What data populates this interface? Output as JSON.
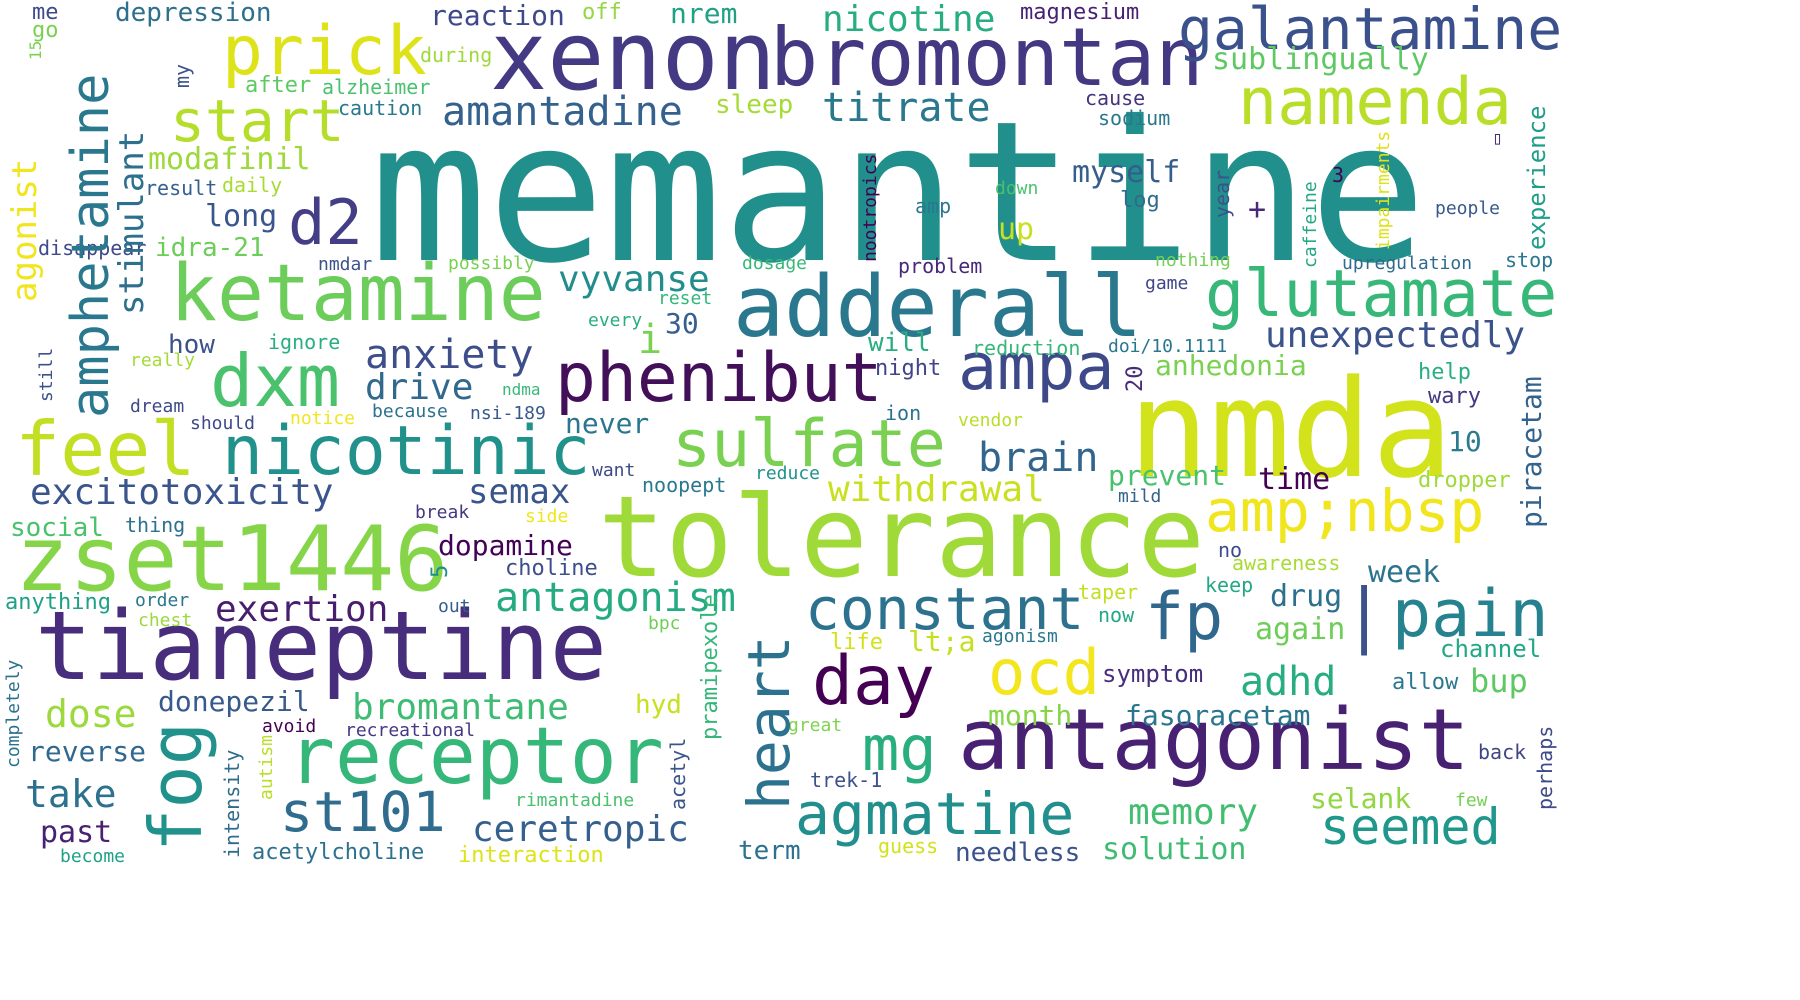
{
  "words": [
    {
      "text": "memantine",
      "color": "#21908c"
    },
    {
      "text": "nmda",
      "color": "#d2e21b"
    },
    {
      "text": "tolerance",
      "color": "#a0da39"
    },
    {
      "text": "xenon",
      "color": "#443983"
    },
    {
      "text": "bromontan",
      "color": "#453882"
    },
    {
      "text": "galantamine",
      "color": "#3b518b"
    },
    {
      "text": "tianeptine",
      "color": "#472d7b"
    },
    {
      "text": "zset1446",
      "color": "#86d549"
    },
    {
      "text": "adderall",
      "color": "#2a788e"
    },
    {
      "text": "antagonist",
      "color": "#482173"
    },
    {
      "text": "ketamine",
      "color": "#6ccd5a"
    },
    {
      "text": "receptor",
      "color": "#35b779"
    },
    {
      "text": "prick",
      "color": "#dde318"
    },
    {
      "text": "phenibut",
      "color": "#440f59"
    },
    {
      "text": "ampa",
      "color": "#3e4989"
    },
    {
      "text": "namenda",
      "color": "#b8de29"
    },
    {
      "text": "glutamate",
      "color": "#37b878"
    },
    {
      "text": "amp;nbsp",
      "color": "#f1e51d"
    },
    {
      "text": "dxm",
      "color": "#4ac16d"
    },
    {
      "text": "feel",
      "color": "#c2df23"
    },
    {
      "text": "nicotinic",
      "color": "#21918c"
    },
    {
      "text": "sulfate",
      "color": "#7ad151"
    },
    {
      "text": "constant",
      "color": "#2c728e"
    },
    {
      "text": "day",
      "color": "#440154"
    },
    {
      "text": "ocd",
      "color": "#f4e61e"
    },
    {
      "text": "pain",
      "color": "#26828e"
    },
    {
      "text": "fp",
      "color": "#30678d"
    },
    {
      "text": "start",
      "color": "#b5de2b"
    },
    {
      "text": "d2",
      "color": "#433e85"
    },
    {
      "text": "amantadine",
      "color": "#34618d"
    },
    {
      "text": "nicotine",
      "color": "#26ad81"
    },
    {
      "text": "titrate",
      "color": "#2a788e"
    },
    {
      "text": "modafinil",
      "color": "#9dd93b"
    },
    {
      "text": "mg",
      "color": "#29af7f"
    },
    {
      "text": "agmatine",
      "color": "#218f8d"
    },
    {
      "text": "st101",
      "color": "#2f6c8e"
    },
    {
      "text": "seemed",
      "color": "#1f988b"
    },
    {
      "text": "ceretropic",
      "color": "#355f8d"
    },
    {
      "text": "bromantane",
      "color": "#3fbc73"
    },
    {
      "text": "dose",
      "color": "#9bd93c"
    },
    {
      "text": "take",
      "color": "#2c718e"
    },
    {
      "text": "excitotoxicity",
      "color": "#3a548c"
    },
    {
      "text": "anxiety",
      "color": "#3d4e8a"
    },
    {
      "text": "drive",
      "color": "#31688e"
    },
    {
      "text": "vyvanse",
      "color": "#228d8d"
    },
    {
      "text": "withdrawal",
      "color": "#c8e020"
    },
    {
      "text": "unexpectedly",
      "color": "#3b528b"
    },
    {
      "text": "brain",
      "color": "#32658e"
    },
    {
      "text": "semax",
      "color": "#39558c"
    },
    {
      "text": "antagonism",
      "color": "#25ab82"
    },
    {
      "text": "exertion",
      "color": "#481d6f"
    },
    {
      "text": "dopamine",
      "color": "#440256"
    },
    {
      "text": "choline",
      "color": "#3d4e8a"
    },
    {
      "text": "adhd",
      "color": "#27ad81"
    },
    {
      "text": "memory",
      "color": "#42be71"
    },
    {
      "text": "solution",
      "color": "#3fbc73"
    },
    {
      "text": "fasoracetam",
      "color": "#2a768e"
    },
    {
      "text": "sublingually",
      "color": "#5ec962"
    },
    {
      "text": "myself",
      "color": "#355e8d"
    },
    {
      "text": "anhedonia",
      "color": "#7ad151"
    },
    {
      "text": "time",
      "color": "#440154"
    },
    {
      "text": "prevent",
      "color": "#4ac16d"
    },
    {
      "text": "week",
      "color": "#2c738e"
    },
    {
      "text": "drug",
      "color": "#2d708e"
    },
    {
      "text": "again",
      "color": "#6ece58"
    },
    {
      "text": "month",
      "color": "#86d549"
    },
    {
      "text": "donepezil",
      "color": "#38598c"
    },
    {
      "text": "reverse",
      "color": "#31688e"
    },
    {
      "text": "past",
      "color": "#482173"
    },
    {
      "text": "term",
      "color": "#2c718e"
    },
    {
      "text": "needless",
      "color": "#3b528b"
    },
    {
      "text": "selank",
      "color": "#90d743"
    },
    {
      "text": "long",
      "color": "#39568c"
    },
    {
      "text": "idra-21",
      "color": "#6ccd5a"
    },
    {
      "text": "how",
      "color": "#3b528b"
    },
    {
      "text": "never",
      "color": "#2b758e"
    },
    {
      "text": "lt;a",
      "color": "#c5e021"
    },
    {
      "text": "i",
      "color": "#7ad151"
    },
    {
      "text": "30",
      "color": "#355f8d"
    },
    {
      "text": "10",
      "color": "#287c8e"
    },
    {
      "text": "up",
      "color": "#c8e020"
    },
    {
      "text": "+",
      "color": "#482878"
    },
    {
      "text": "will",
      "color": "#28ae80"
    },
    {
      "text": "night",
      "color": "#414487"
    },
    {
      "text": "sleep",
      "color": "#a5db36"
    },
    {
      "text": "reaction",
      "color": "#3f4889"
    },
    {
      "text": "depression",
      "color": "#2d708e"
    },
    {
      "text": "nrem",
      "color": "#1fa187"
    },
    {
      "text": "magnesium",
      "color": "#482173"
    },
    {
      "text": "off",
      "color": "#93d741"
    },
    {
      "text": "me",
      "color": "#3e4a89"
    },
    {
      "text": "go",
      "color": "#7ad151"
    },
    {
      "text": "during",
      "color": "#9fda3a"
    },
    {
      "text": "after",
      "color": "#5ec962"
    },
    {
      "text": "alzheimer",
      "color": "#4ac16d"
    },
    {
      "text": "caution",
      "color": "#2a788e"
    },
    {
      "text": "result",
      "color": "#355f8d"
    },
    {
      "text": "daily",
      "color": "#a8db34"
    },
    {
      "text": "disappear",
      "color": "#3e4a89"
    },
    {
      "text": "cause",
      "color": "#46337f"
    },
    {
      "text": "sodium",
      "color": "#2a788e"
    },
    {
      "text": "log",
      "color": "#2f6c8e"
    },
    {
      "text": "down",
      "color": "#4ac16d"
    },
    {
      "text": "amp",
      "color": "#2a788e"
    },
    {
      "text": "nmdar",
      "color": "#3b528b"
    },
    {
      "text": "possibly",
      "color": "#7ad151"
    },
    {
      "text": "dosage",
      "color": "#37b878"
    },
    {
      "text": "reset",
      "color": "#32b67a"
    },
    {
      "text": "every",
      "color": "#29af7f"
    },
    {
      "text": "problem",
      "color": "#482878"
    },
    {
      "text": "nothing",
      "color": "#75d054"
    },
    {
      "text": "game",
      "color": "#404688"
    },
    {
      "text": "upregulation",
      "color": "#2f6b8e"
    },
    {
      "text": "people",
      "color": "#38598c"
    },
    {
      "text": "stop",
      "color": "#2a778e"
    },
    {
      "text": "3",
      "color": "#440154"
    },
    {
      "text": "ignore",
      "color": "#29af7f"
    },
    {
      "text": "really",
      "color": "#a5db36"
    },
    {
      "text": "dream",
      "color": "#3e4989"
    },
    {
      "text": "should",
      "color": "#3e4989"
    },
    {
      "text": "notice",
      "color": "#f1e51d"
    },
    {
      "text": "because",
      "color": "#2c718e"
    },
    {
      "text": "nsi-189",
      "color": "#38598c"
    },
    {
      "text": "ndma",
      "color": "#37b878"
    },
    {
      "text": "reduction",
      "color": "#35b779"
    },
    {
      "text": "doi/10.1111",
      "color": "#2a768e"
    },
    {
      "text": "help",
      "color": "#29af7f"
    },
    {
      "text": "wary",
      "color": "#453882"
    },
    {
      "text": "ion",
      "color": "#2c728e"
    },
    {
      "text": "vendor",
      "color": "#b8de29"
    },
    {
      "text": "want",
      "color": "#3e4989"
    },
    {
      "text": "reduce",
      "color": "#21918c"
    },
    {
      "text": "noopept",
      "color": "#2a788e"
    },
    {
      "text": "mild",
      "color": "#33638d"
    },
    {
      "text": "dropper",
      "color": "#9fda3a"
    },
    {
      "text": "break",
      "color": "#453781"
    },
    {
      "text": "side",
      "color": "#f1e51d"
    },
    {
      "text": "social",
      "color": "#4ac16d"
    },
    {
      "text": "thing",
      "color": "#2c718e"
    },
    {
      "text": "no",
      "color": "#3e4a89"
    },
    {
      "text": "awareness",
      "color": "#a8db34"
    },
    {
      "text": "keep",
      "color": "#22a884"
    },
    {
      "text": "anything",
      "color": "#1fa187"
    },
    {
      "text": "order",
      "color": "#2a768e"
    },
    {
      "text": "chest",
      "color": "#9bd93c"
    },
    {
      "text": "out",
      "color": "#355f8d"
    },
    {
      "text": "bpc",
      "color": "#6ece58"
    },
    {
      "text": "taper",
      "color": "#c2df23"
    },
    {
      "text": "now",
      "color": "#22a884"
    },
    {
      "text": "life",
      "color": "#d2e21b"
    },
    {
      "text": "agonism",
      "color": "#2a788e"
    },
    {
      "text": "channel",
      "color": "#22a884"
    },
    {
      "text": "symptom",
      "color": "#472d7b"
    },
    {
      "text": "allow",
      "color": "#2a778e"
    },
    {
      "text": "bup",
      "color": "#5ec962"
    },
    {
      "text": "hyd",
      "color": "#c8e020"
    },
    {
      "text": "avoid",
      "color": "#440154"
    },
    {
      "text": "recreational",
      "color": "#443983"
    },
    {
      "text": "great",
      "color": "#7fd34e"
    },
    {
      "text": "back",
      "color": "#414487"
    },
    {
      "text": "trek-1",
      "color": "#3b528b"
    },
    {
      "text": "rimantadine",
      "color": "#4ac16d"
    },
    {
      "text": "few",
      "color": "#75d054"
    },
    {
      "text": "guess",
      "color": "#d2e21b"
    },
    {
      "text": "acetylcholine",
      "color": "#2c718e"
    },
    {
      "text": "interaction",
      "color": "#dde318"
    },
    {
      "text": "become",
      "color": "#1fa187"
    },
    {
      "text": "experience",
      "color": "#1f9e89"
    },
    {
      "text": "piracetam",
      "color": "#33638d"
    },
    {
      "text": "20",
      "color": "#472c7a"
    },
    {
      "text": "5",
      "color": "#228d8d"
    },
    {
      "text": "perhaps",
      "color": "#3e4a89"
    },
    {
      "text": "completely",
      "color": "#2c718e"
    },
    {
      "text": "intensity",
      "color": "#2f6c8e"
    },
    {
      "text": "autism",
      "color": "#b8de29"
    },
    {
      "text": "acetyl",
      "color": "#39568c"
    },
    {
      "text": "pramipexole",
      "color": "#35b779"
    },
    {
      "text": "nootropics",
      "color": "#440154"
    },
    {
      "text": "year",
      "color": "#3b528b"
    },
    {
      "text": "caffeine",
      "color": "#22a884"
    },
    {
      "text": "impairments",
      "color": "#dde318"
    },
    {
      "text": "agonist",
      "color": "#f1e51d"
    },
    {
      "text": "stimulant",
      "color": "#2d708e"
    },
    {
      "text": "amphetamine",
      "color": "#2a788e"
    },
    {
      "text": "fog",
      "color": "#21918c"
    },
    {
      "text": "heart",
      "color": "#2c728e"
    },
    {
      "text": "my",
      "color": "#3b528b"
    },
    {
      "text": "still",
      "color": "#3b528b"
    },
    {
      "text": "15",
      "color": "#7ad151"
    },
    {
      "text": "|",
      "color": "#3b528b"
    },
    {
      "text": "▯",
      "color": "#482878"
    }
  ]
}
